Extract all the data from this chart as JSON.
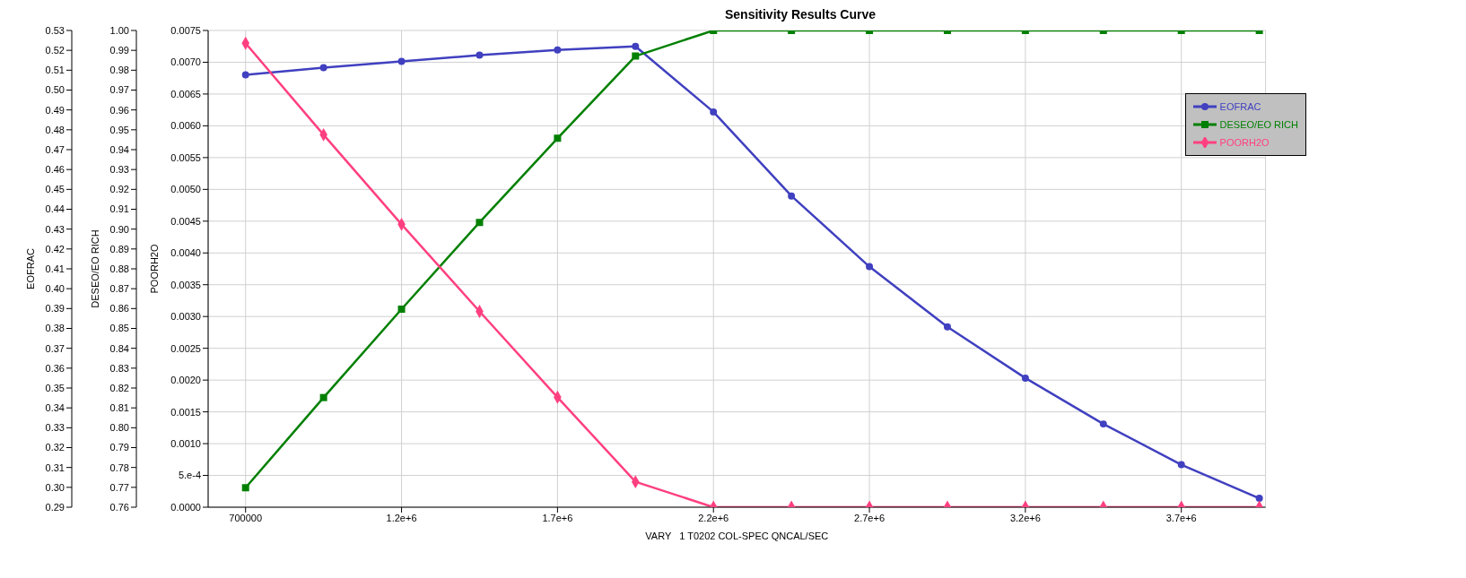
{
  "chart_data": {
    "type": "line",
    "title": "Sensitivity Results Curve",
    "xlabel": "VARY   1 T0202 COL-SPEC QNCAL/SEC",
    "ylabel": "EOFRAC",
    "y2label": "DESEO/EO RICH",
    "y3label": "POORH2O",
    "x": [
      700000,
      950000,
      1200000,
      1450000,
      1700000,
      1950000,
      2200000,
      2450000,
      2700000,
      2950000,
      3200000,
      3450000,
      3700000,
      3950000
    ],
    "xlim": [
      580000,
      3970000
    ],
    "xticks": [
      {
        "value": 700000,
        "label": "700000"
      },
      {
        "value": 1200000,
        "label": "1.2e+6"
      },
      {
        "value": 1700000,
        "label": "1.7e+6"
      },
      {
        "value": 2200000,
        "label": "2.2e+6"
      },
      {
        "value": 2700000,
        "label": "2.7e+6"
      },
      {
        "value": 3200000,
        "label": "3.2e+6"
      },
      {
        "value": 3700000,
        "label": "3.7e+6"
      }
    ],
    "series": [
      {
        "name": "EOFRAC",
        "color": "#4040c0",
        "marker": "circle",
        "values": [
          0.5077,
          0.5113,
          0.5144,
          0.5176,
          0.5202,
          0.522,
          0.489,
          0.4467,
          0.4111,
          0.3808,
          0.355,
          0.3319,
          0.3114,
          0.2945
        ]
      },
      {
        "name": "DESEO/EO RICH",
        "color": "#008000",
        "marker": "square",
        "axis": "y2",
        "values": [
          0.7698,
          0.8152,
          0.8597,
          0.9034,
          0.9457,
          0.9871,
          1.0,
          1.0,
          1.0,
          1.0,
          1.0,
          1.0,
          1.0,
          1.0
        ]
      },
      {
        "name": "POORH2O",
        "color": "#ff4080",
        "marker": "diamond",
        "axis": "y3",
        "values": [
          0.0073,
          0.00586,
          0.00445,
          0.00308,
          0.00173,
          0.0004,
          0,
          0,
          0,
          0,
          0,
          0,
          0,
          0
        ]
      }
    ],
    "ylim": [
      0.29,
      0.53
    ],
    "yticks": [
      {
        "value": 0.29,
        "label": "0.29"
      },
      {
        "value": 0.3,
        "label": "0.30"
      },
      {
        "value": 0.31,
        "label": "0.31"
      },
      {
        "value": 0.32,
        "label": "0.32"
      },
      {
        "value": 0.33,
        "label": "0.33"
      },
      {
        "value": 0.34,
        "label": "0.34"
      },
      {
        "value": 0.35,
        "label": "0.35"
      },
      {
        "value": 0.36,
        "label": "0.36"
      },
      {
        "value": 0.37,
        "label": "0.37"
      },
      {
        "value": 0.38,
        "label": "0.38"
      },
      {
        "value": 0.39,
        "label": "0.39"
      },
      {
        "value": 0.4,
        "label": "0.40"
      },
      {
        "value": 0.41,
        "label": "0.41"
      },
      {
        "value": 0.42,
        "label": "0.42"
      },
      {
        "value": 0.43,
        "label": "0.43"
      },
      {
        "value": 0.44,
        "label": "0.44"
      },
      {
        "value": 0.45,
        "label": "0.45"
      },
      {
        "value": 0.46,
        "label": "0.46"
      },
      {
        "value": 0.47,
        "label": "0.47"
      },
      {
        "value": 0.48,
        "label": "0.48"
      },
      {
        "value": 0.49,
        "label": "0.49"
      },
      {
        "value": 0.5,
        "label": "0.50"
      },
      {
        "value": 0.51,
        "label": "0.51"
      },
      {
        "value": 0.52,
        "label": "0.52"
      },
      {
        "value": 0.53,
        "label": "0.53"
      }
    ],
    "y2lim": [
      0.76,
      1.0
    ],
    "y2ticks": [
      {
        "value": 0.76,
        "label": "0.76"
      },
      {
        "value": 0.77,
        "label": "0.77"
      },
      {
        "value": 0.78,
        "label": "0.78"
      },
      {
        "value": 0.79,
        "label": "0.79"
      },
      {
        "value": 0.8,
        "label": "0.80"
      },
      {
        "value": 0.81,
        "label": "0.81"
      },
      {
        "value": 0.82,
        "label": "0.82"
      },
      {
        "value": 0.83,
        "label": "0.83"
      },
      {
        "value": 0.84,
        "label": "0.84"
      },
      {
        "value": 0.85,
        "label": "0.85"
      },
      {
        "value": 0.86,
        "label": "0.86"
      },
      {
        "value": 0.87,
        "label": "0.87"
      },
      {
        "value": 0.88,
        "label": "0.88"
      },
      {
        "value": 0.89,
        "label": "0.89"
      },
      {
        "value": 0.9,
        "label": "0.90"
      },
      {
        "value": 0.91,
        "label": "0.91"
      },
      {
        "value": 0.92,
        "label": "0.92"
      },
      {
        "value": 0.93,
        "label": "0.93"
      },
      {
        "value": 0.94,
        "label": "0.94"
      },
      {
        "value": 0.95,
        "label": "0.95"
      },
      {
        "value": 0.96,
        "label": "0.96"
      },
      {
        "value": 0.97,
        "label": "0.97"
      },
      {
        "value": 0.98,
        "label": "0.98"
      },
      {
        "value": 0.99,
        "label": "0.99"
      },
      {
        "value": 1.0,
        "label": "1.00"
      }
    ],
    "y3lim": [
      0,
      0.0075
    ],
    "y3ticks": [
      {
        "value": 0,
        "label": "0.0000"
      },
      {
        "value": 0.0005,
        "label": "5.e-4"
      },
      {
        "value": 0.001,
        "label": "0.0010"
      },
      {
        "value": 0.0015,
        "label": "0.0015"
      },
      {
        "value": 0.002,
        "label": "0.0020"
      },
      {
        "value": 0.0025,
        "label": "0.0025"
      },
      {
        "value": 0.003,
        "label": "0.0030"
      },
      {
        "value": 0.0035,
        "label": "0.0035"
      },
      {
        "value": 0.004,
        "label": "0.0040"
      },
      {
        "value": 0.0045,
        "label": "0.0045"
      },
      {
        "value": 0.005,
        "label": "0.0050"
      },
      {
        "value": 0.0055,
        "label": "0.0055"
      },
      {
        "value": 0.006,
        "label": "0.0060"
      },
      {
        "value": 0.0065,
        "label": "0.0065"
      },
      {
        "value": 0.007,
        "label": "0.0070"
      },
      {
        "value": 0.0075,
        "label": "0.0075"
      }
    ],
    "grid": true,
    "legend": "top right",
    "line_style": "solid"
  }
}
